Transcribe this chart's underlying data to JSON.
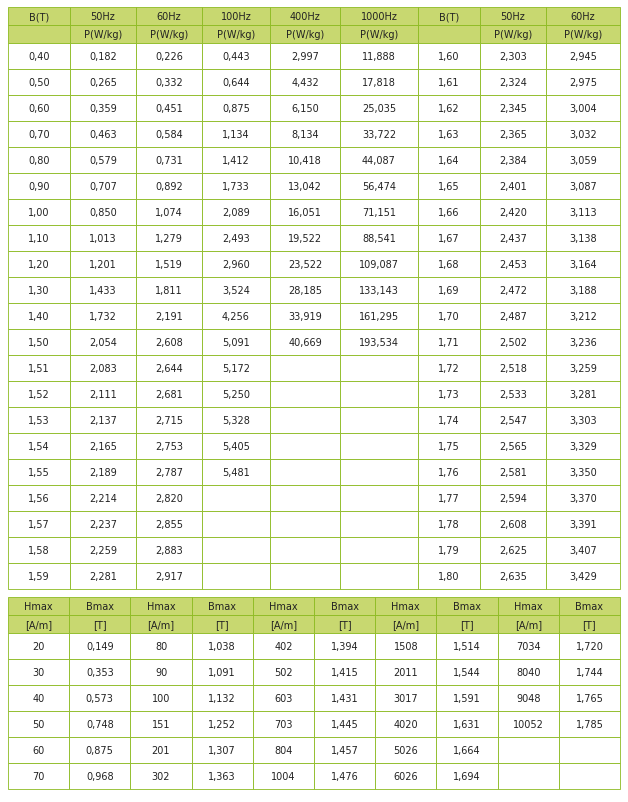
{
  "header_bg": "#c8d870",
  "header_text": "#333333",
  "cell_bg": "#ffffff",
  "grid_color": "#8cba20",
  "text_color": "#222222",
  "font_size": 7.0,
  "header_font_size": 7.0,
  "table1_headers_row1": [
    "B(T)",
    "50Hz",
    "60Hz",
    "100Hz",
    "400Hz",
    "1000Hz",
    "B(T)",
    "50Hz",
    "60Hz"
  ],
  "table1_headers_row2": [
    "",
    "P(W/kg)",
    "P(W/kg)",
    "P(W/kg)",
    "P(W/kg)",
    "P(W/kg)",
    "",
    "P(W/kg)",
    "P(W/kg)"
  ],
  "table1_data": [
    [
      "0,40",
      "0,182",
      "0,226",
      "0,443",
      "2,997",
      "11,888",
      "1,60",
      "2,303",
      "2,945"
    ],
    [
      "0,50",
      "0,265",
      "0,332",
      "0,644",
      "4,432",
      "17,818",
      "1,61",
      "2,324",
      "2,975"
    ],
    [
      "0,60",
      "0,359",
      "0,451",
      "0,875",
      "6,150",
      "25,035",
      "1,62",
      "2,345",
      "3,004"
    ],
    [
      "0,70",
      "0,463",
      "0,584",
      "1,134",
      "8,134",
      "33,722",
      "1,63",
      "2,365",
      "3,032"
    ],
    [
      "0,80",
      "0,579",
      "0,731",
      "1,412",
      "10,418",
      "44,087",
      "1,64",
      "2,384",
      "3,059"
    ],
    [
      "0,90",
      "0,707",
      "0,892",
      "1,733",
      "13,042",
      "56,474",
      "1,65",
      "2,401",
      "3,087"
    ],
    [
      "1,00",
      "0,850",
      "1,074",
      "2,089",
      "16,051",
      "71,151",
      "1,66",
      "2,420",
      "3,113"
    ],
    [
      "1,10",
      "1,013",
      "1,279",
      "2,493",
      "19,522",
      "88,541",
      "1,67",
      "2,437",
      "3,138"
    ],
    [
      "1,20",
      "1,201",
      "1,519",
      "2,960",
      "23,522",
      "109,087",
      "1,68",
      "2,453",
      "3,164"
    ],
    [
      "1,30",
      "1,433",
      "1,811",
      "3,524",
      "28,185",
      "133,143",
      "1,69",
      "2,472",
      "3,188"
    ],
    [
      "1,40",
      "1,732",
      "2,191",
      "4,256",
      "33,919",
      "161,295",
      "1,70",
      "2,487",
      "3,212"
    ],
    [
      "1,50",
      "2,054",
      "2,608",
      "5,091",
      "40,669",
      "193,534",
      "1,71",
      "2,502",
      "3,236"
    ],
    [
      "1,51",
      "2,083",
      "2,644",
      "5,172",
      "",
      "",
      "1,72",
      "2,518",
      "3,259"
    ],
    [
      "1,52",
      "2,111",
      "2,681",
      "5,250",
      "",
      "",
      "1,73",
      "2,533",
      "3,281"
    ],
    [
      "1,53",
      "2,137",
      "2,715",
      "5,328",
      "",
      "",
      "1,74",
      "2,547",
      "3,303"
    ],
    [
      "1,54",
      "2,165",
      "2,753",
      "5,405",
      "",
      "",
      "1,75",
      "2,565",
      "3,329"
    ],
    [
      "1,55",
      "2,189",
      "2,787",
      "5,481",
      "",
      "",
      "1,76",
      "2,581",
      "3,350"
    ],
    [
      "1,56",
      "2,214",
      "2,820",
      "",
      "",
      "",
      "1,77",
      "2,594",
      "3,370"
    ],
    [
      "1,57",
      "2,237",
      "2,855",
      "",
      "",
      "",
      "1,78",
      "2,608",
      "3,391"
    ],
    [
      "1,58",
      "2,259",
      "2,883",
      "",
      "",
      "",
      "1,79",
      "2,625",
      "3,407"
    ],
    [
      "1,59",
      "2,281",
      "2,917",
      "",
      "",
      "",
      "1,80",
      "2,635",
      "3,429"
    ]
  ],
  "table2_headers_row1": [
    "Hmax",
    "Bmax",
    "Hmax",
    "Bmax",
    "Hmax",
    "Bmax",
    "Hmax",
    "Bmax",
    "Hmax",
    "Bmax"
  ],
  "table2_headers_row2": [
    "[A/m]",
    "[T]",
    "[A/m]",
    "[T]",
    "[A/m]",
    "[T]",
    "[A/m]",
    "[T]",
    "[A/m]",
    "[T]"
  ],
  "table2_data": [
    [
      "20",
      "0,149",
      "80",
      "1,038",
      "402",
      "1,394",
      "1508",
      "1,514",
      "7034",
      "1,720"
    ],
    [
      "30",
      "0,353",
      "90",
      "1,091",
      "502",
      "1,415",
      "2011",
      "1,544",
      "8040",
      "1,744"
    ],
    [
      "40",
      "0,573",
      "100",
      "1,132",
      "603",
      "1,431",
      "3017",
      "1,591",
      "9048",
      "1,765"
    ],
    [
      "50",
      "0,748",
      "151",
      "1,252",
      "703",
      "1,445",
      "4020",
      "1,631",
      "10052",
      "1,785"
    ],
    [
      "60",
      "0,875",
      "201",
      "1,307",
      "804",
      "1,457",
      "5026",
      "1,664",
      "",
      ""
    ],
    [
      "70",
      "0,968",
      "302",
      "1,363",
      "1004",
      "1,476",
      "6026",
      "1,694",
      "",
      ""
    ]
  ],
  "fig_width": 6.28,
  "fig_height": 8.03,
  "dpi": 100
}
